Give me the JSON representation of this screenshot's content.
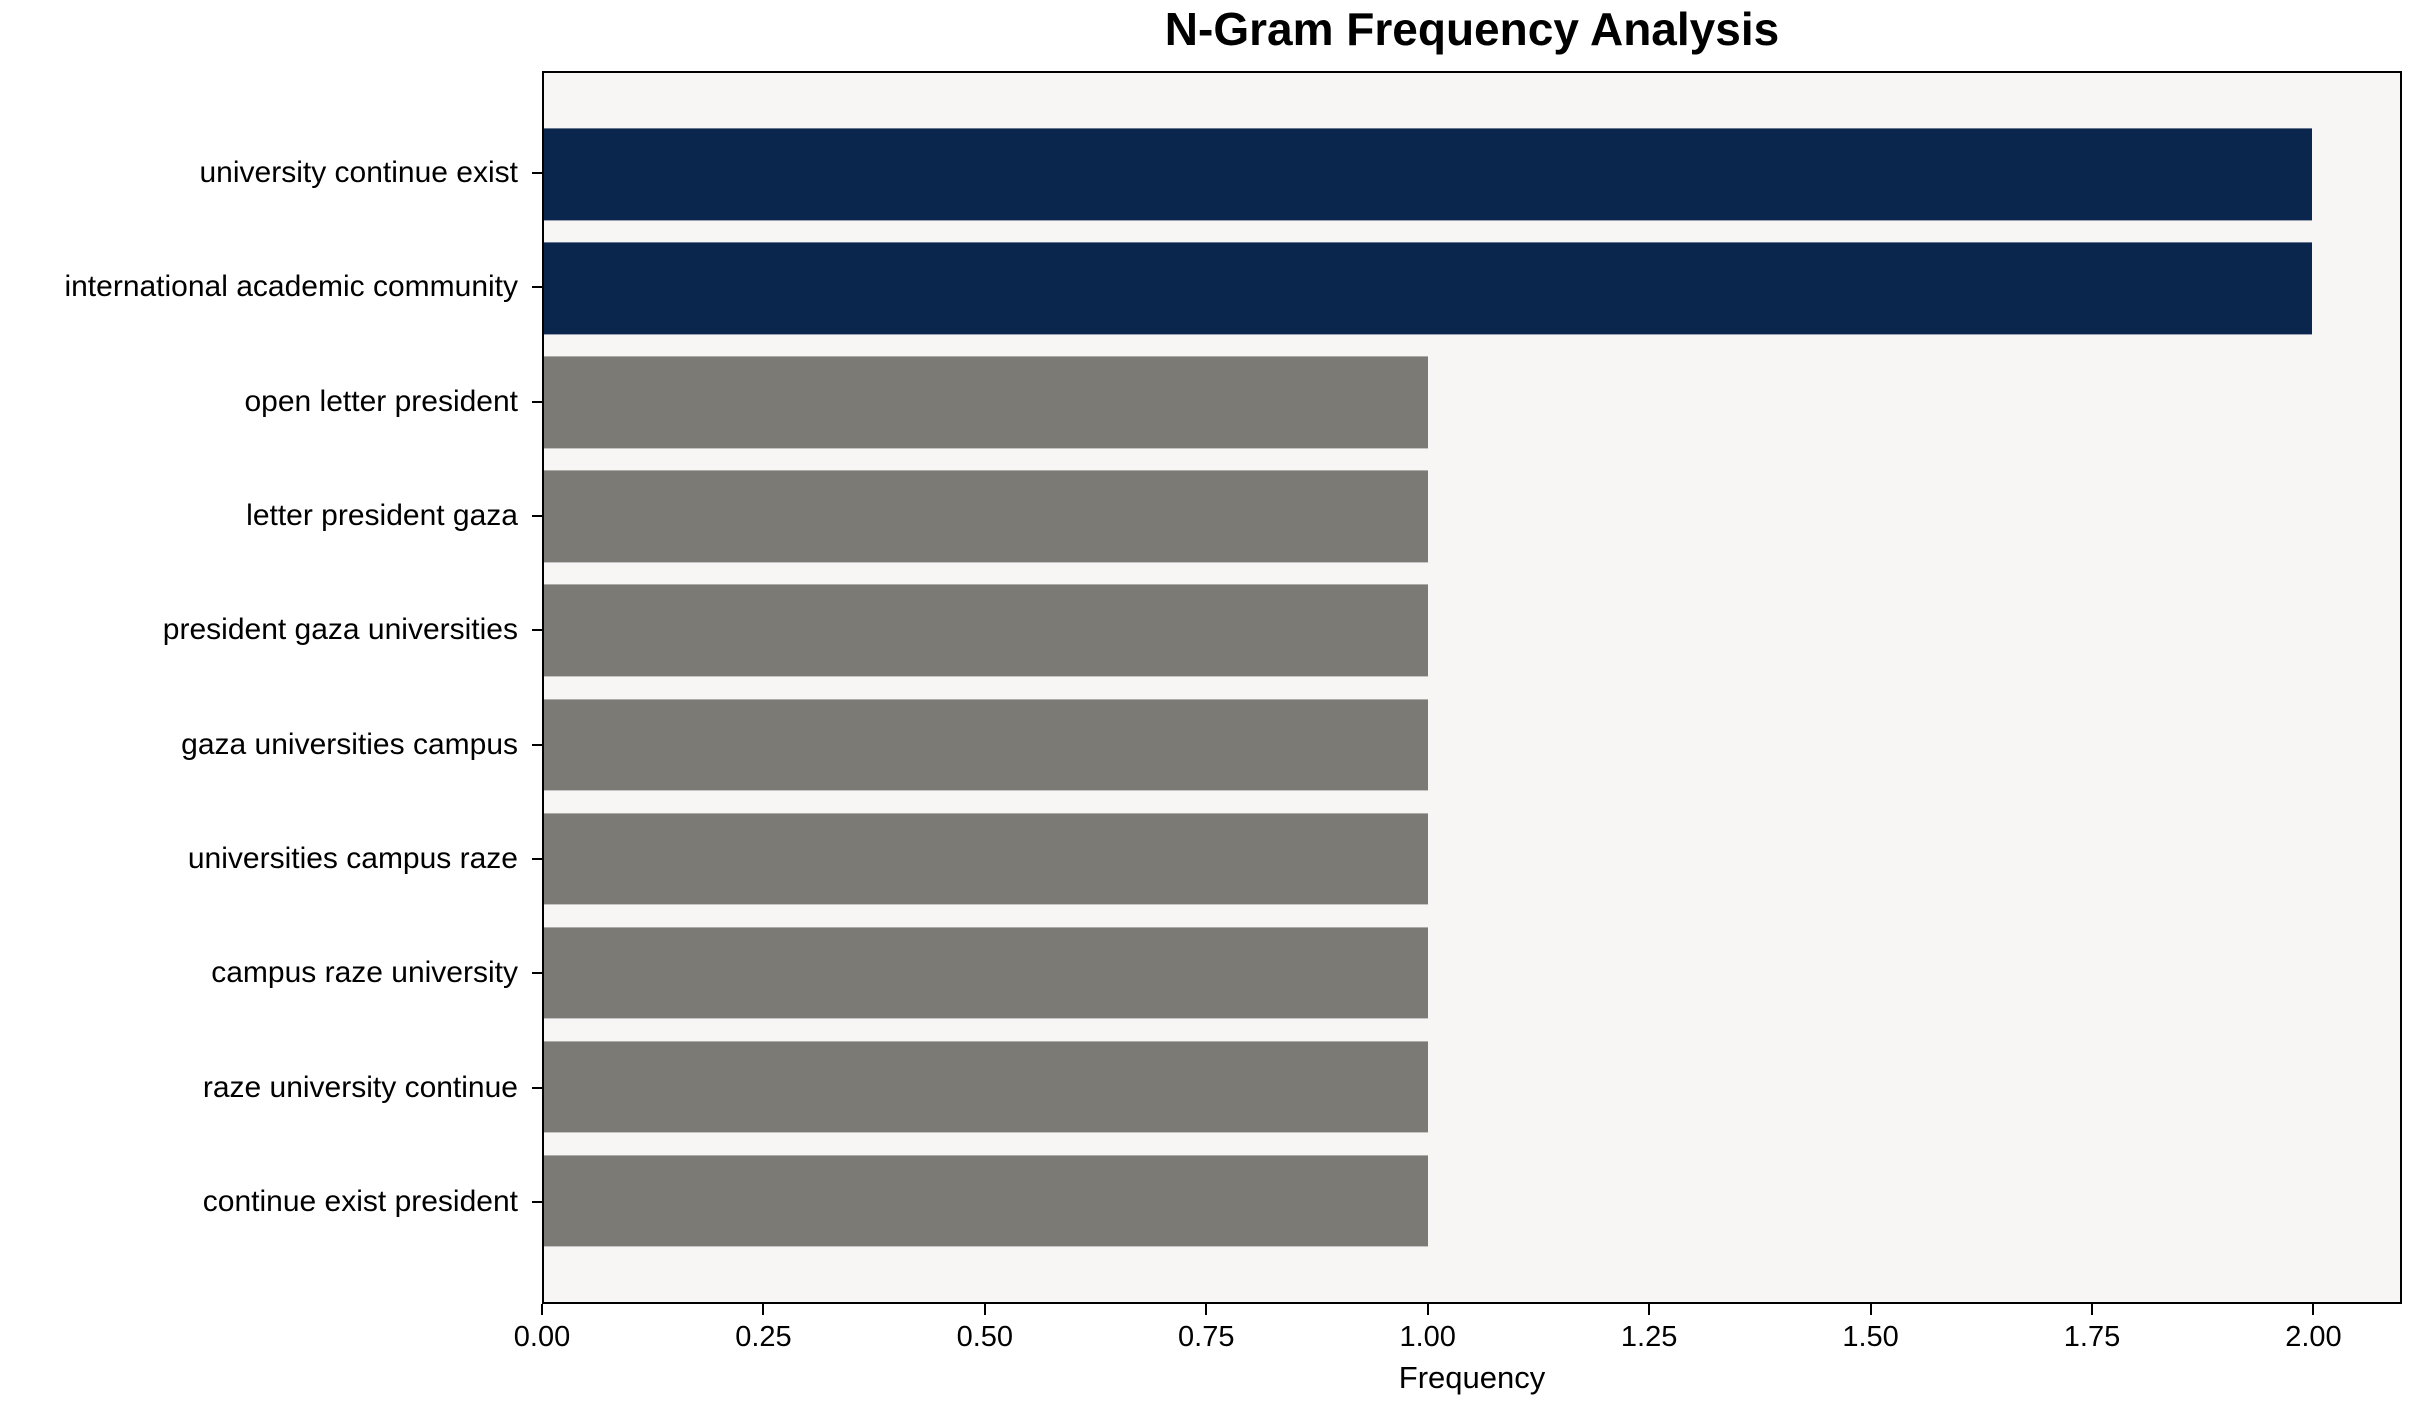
{
  "chart_data": {
    "type": "bar",
    "orientation": "horizontal",
    "title": "N-Gram Frequency Analysis",
    "xlabel": "Frequency",
    "ylabel": "",
    "categories": [
      "university continue exist",
      "international academic community",
      "open letter president",
      "letter president gaza",
      "president gaza universities",
      "gaza universities campus",
      "universities campus raze",
      "campus raze university",
      "raze university continue",
      "continue exist president"
    ],
    "values": [
      2,
      2,
      1,
      1,
      1,
      1,
      1,
      1,
      1,
      1
    ],
    "bar_colors": [
      "#0a264d",
      "#0a264d",
      "#7b7a75",
      "#7b7a75",
      "#7b7a75",
      "#7b7a75",
      "#7b7a75",
      "#7b7a75",
      "#7b7a75",
      "#7b7a75"
    ],
    "highlight_color": "#0a264d",
    "default_color": "#7b7a75",
    "plot_background": "#f7f6f5",
    "xlim": [
      0,
      2.1
    ],
    "xticks": [
      0,
      0.25,
      0.5,
      0.75,
      1.0,
      1.25,
      1.5,
      1.75,
      2.0
    ],
    "xtick_labels": [
      "0.00",
      "0.25",
      "0.50",
      "0.75",
      "1.00",
      "1.25",
      "1.50",
      "1.75",
      "2.00"
    ],
    "grid": false,
    "legend": false
  }
}
